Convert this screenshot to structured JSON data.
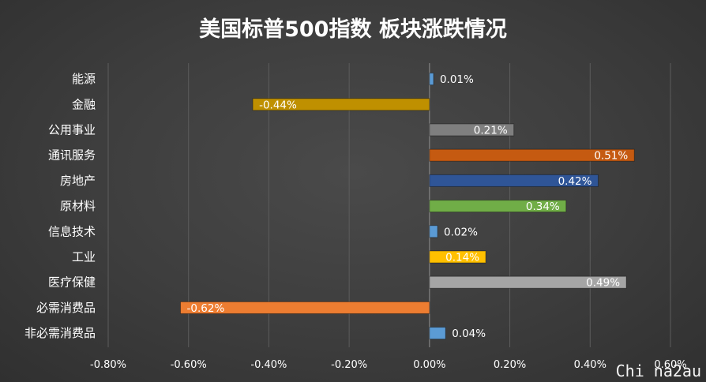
{
  "chart_data": {
    "type": "bar",
    "orientation": "horizontal",
    "title": "美国标普500指数 板块涨跌情况",
    "categories": [
      "能源",
      "金融",
      "公用事业",
      "通讯服务",
      "房地产",
      "原材料",
      "信息技术",
      "工业",
      "医疗保健",
      "必需消费品",
      "非必需消费品"
    ],
    "values": [
      0.01,
      -0.44,
      0.21,
      0.51,
      0.42,
      0.34,
      0.02,
      0.14,
      0.49,
      -0.62,
      0.04
    ],
    "value_labels": [
      "0.01%",
      "-0.44%",
      "0.21%",
      "0.51%",
      "0.42%",
      "0.34%",
      "0.02%",
      "0.14%",
      "0.49%",
      "-0.62%",
      "0.04%"
    ],
    "colors": [
      "#5b9bd5",
      "#bf9000",
      "#7f7f7f",
      "#c55a11",
      "#2f5597",
      "#70ad47",
      "#5b9bd5",
      "#ffc000",
      "#a5a5a5",
      "#ed7d31",
      "#5b9bd5"
    ],
    "xlim": [
      -0.8,
      0.6
    ],
    "xticks": [
      -0.8,
      -0.6,
      -0.4,
      -0.2,
      0.0,
      0.2,
      0.4,
      0.6
    ],
    "xtick_labels": [
      "-0.80%",
      "-0.60%",
      "-0.40%",
      "-0.20%",
      "0.00%",
      "0.20%",
      "0.40%",
      "0.60%"
    ],
    "grid": true,
    "xlabel": "",
    "ylabel": ""
  },
  "watermark": "Chi na2au"
}
